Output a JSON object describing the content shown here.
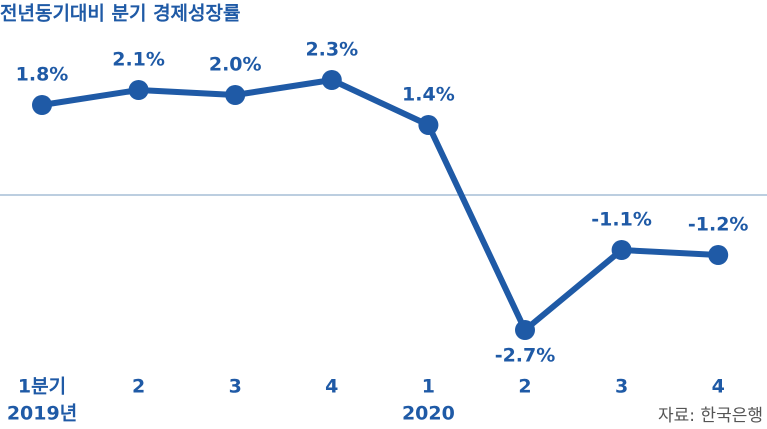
{
  "chart_data": {
    "type": "line",
    "title": "전년동기대비 분기 경제성장률",
    "categories": [
      "1분기",
      "2",
      "3",
      "4",
      "1",
      "2",
      "3",
      "4"
    ],
    "year_labels": [
      "2019년",
      null,
      null,
      null,
      "2020",
      null,
      null,
      null
    ],
    "series": [
      {
        "name": "경제성장률",
        "color": "#1f5aa6",
        "values": [
          1.8,
          2.1,
          2.0,
          2.3,
          1.4,
          -2.7,
          -1.1,
          -1.2
        ],
        "value_labels": [
          "1.8%",
          "2.1%",
          "2.0%",
          "2.3%",
          "1.4%",
          "-2.7%",
          "-1.1%",
          "-1.2%"
        ]
      }
    ],
    "source": "자료: 한국은행"
  }
}
